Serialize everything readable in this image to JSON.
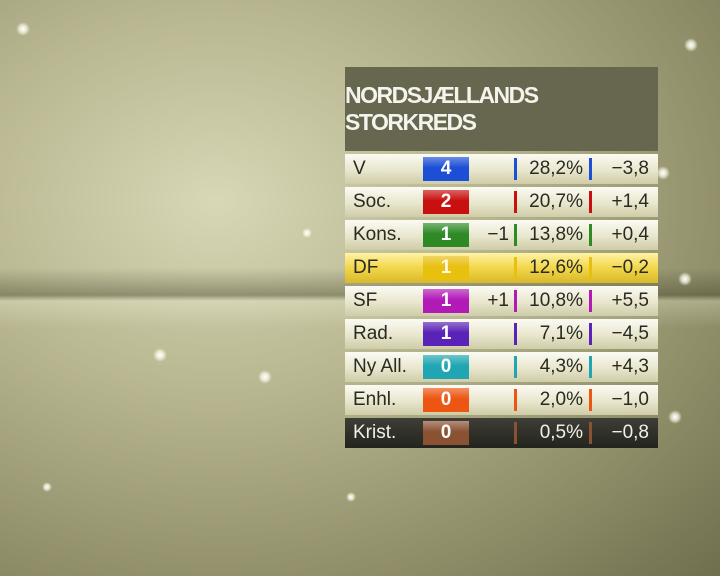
{
  "title": "NORDSJÆLLANDS STORKREDS",
  "rows": [
    {
      "party": "V",
      "seats": "4",
      "change": "",
      "pct": "28,2%",
      "diff": "−3,8",
      "color": "#1c4fd6"
    },
    {
      "party": "Soc.",
      "seats": "2",
      "change": "",
      "pct": "20,7%",
      "diff": "+1,4",
      "color": "#c81010"
    },
    {
      "party": "Kons.",
      "seats": "1",
      "change": "−1",
      "pct": "13,8%",
      "diff": "+0,4",
      "color": "#2f8a26"
    },
    {
      "party": "DF",
      "seats": "1",
      "change": "",
      "pct": "12,6%",
      "diff": "−0,2",
      "color": "#e8c010"
    },
    {
      "party": "SF",
      "seats": "1",
      "change": "+1",
      "pct": "10,8%",
      "diff": "+5,5",
      "color": "#b21ab8"
    },
    {
      "party": "Rad.",
      "seats": "1",
      "change": "",
      "pct": "7,1%",
      "diff": "−4,5",
      "color": "#5a22b6"
    },
    {
      "party": "Ny All.",
      "seats": "0",
      "change": "",
      "pct": "4,3%",
      "diff": "+4,3",
      "color": "#1fa6b2"
    },
    {
      "party": "Enhl.",
      "seats": "0",
      "change": "",
      "pct": "2,0%",
      "diff": "−1,0",
      "color": "#ec5612"
    },
    {
      "party": "Krist.",
      "seats": "0",
      "change": "",
      "pct": "0,5%",
      "diff": "−0,8",
      "color": "#8a5232"
    }
  ]
}
